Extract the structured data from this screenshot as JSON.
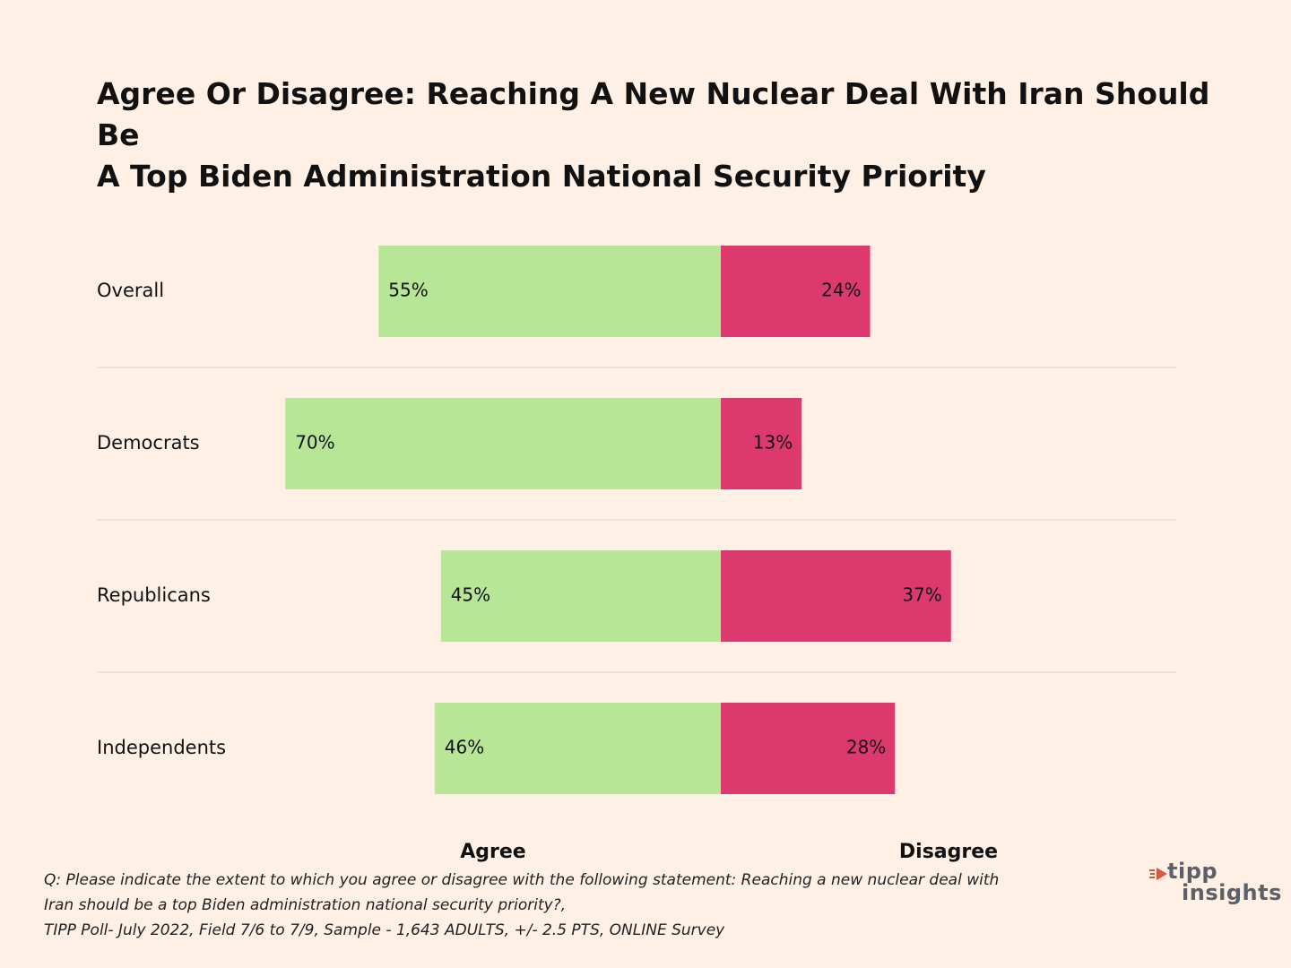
{
  "title_lines": [
    "Agree Or Disagree: Reaching A New Nuclear Deal With Iran Should Be",
    "A Top Biden Administration National Security Priority"
  ],
  "colors": {
    "agree": "#b8e697",
    "disagree": "#dc3a6e",
    "background": "#fff0e6",
    "separator": "#d9d2cc",
    "logo_accent": "#e0543c",
    "logo_text": "#5d6069"
  },
  "chart_data": {
    "type": "bar",
    "orientation": "horizontal-diverging",
    "title": "Agree Or Disagree: Reaching A New Nuclear Deal With Iran Should Be A Top Biden Administration National Security Priority",
    "categories": [
      "Overall",
      "Democrats",
      "Republicans",
      "Independents"
    ],
    "series": [
      {
        "name": "Agree",
        "values": [
          55,
          70,
          45,
          46
        ],
        "labels": [
          "55%",
          "70%",
          "45%",
          "46%"
        ]
      },
      {
        "name": "Disagree",
        "values": [
          24,
          13,
          37,
          28
        ],
        "labels": [
          "24%",
          "13%",
          "37%",
          "28%"
        ]
      }
    ],
    "unit": "%",
    "xlim": [
      -70,
      70
    ],
    "legend": [
      "Agree",
      "Disagree"
    ]
  },
  "footnote": {
    "lines": [
      "Q: Please indicate the extent to which you agree or disagree with the following statement: Reaching a new nuclear deal with",
      "Iran should be a top Biden administration national security priority?,",
      "TIPP Poll- July 2022, Field 7/6 to 7/9, Sample - 1,643 ADULTS, +/- 2.5 PTS, ONLINE Survey"
    ]
  },
  "logo": {
    "line1": "tipp",
    "line2": "insights"
  }
}
